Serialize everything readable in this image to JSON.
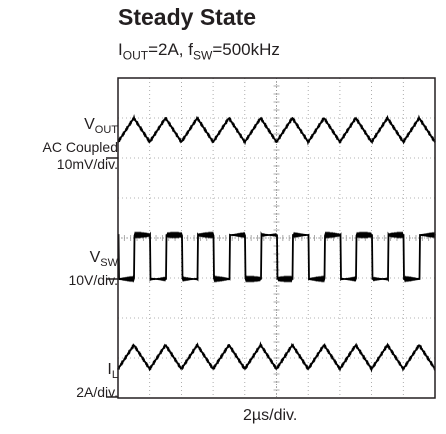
{
  "chart_data": {
    "type": "line",
    "title": "Steady State",
    "subtitle": {
      "iout_main": "I",
      "iout_sub": "OUT",
      "iout_value": "=2A, ",
      "fsw_main": "f",
      "fsw_sub": "SW",
      "fsw_value": "=500kHz"
    },
    "xlabel": "2µs/div.",
    "x_divisions": 10,
    "y_divisions": 8,
    "grid": true,
    "channels": [
      {
        "label_main": "V",
        "label_sub": "OUT",
        "coupling": "AC Coupled",
        "scale": "10mV/div.",
        "waveform": "triangle",
        "ripple_periods": 10,
        "ripple_pp_div": 0.6,
        "level_div": 0.7
      },
      {
        "label_main": "V",
        "label_sub": "SW",
        "coupling": "",
        "scale": "10V/div.",
        "waveform": "square",
        "cycles": 10,
        "amplitude_div": 1.1,
        "duty": 0.5
      },
      {
        "label_main": "I",
        "label_sub": "L",
        "coupling": "",
        "scale": "2A/div.",
        "waveform": "triangle",
        "ripple_periods": 10,
        "ripple_pp_div": 0.6,
        "level_div": 1.0
      }
    ],
    "trace_color": "#000000",
    "grid_color": "#9a9a9a"
  }
}
